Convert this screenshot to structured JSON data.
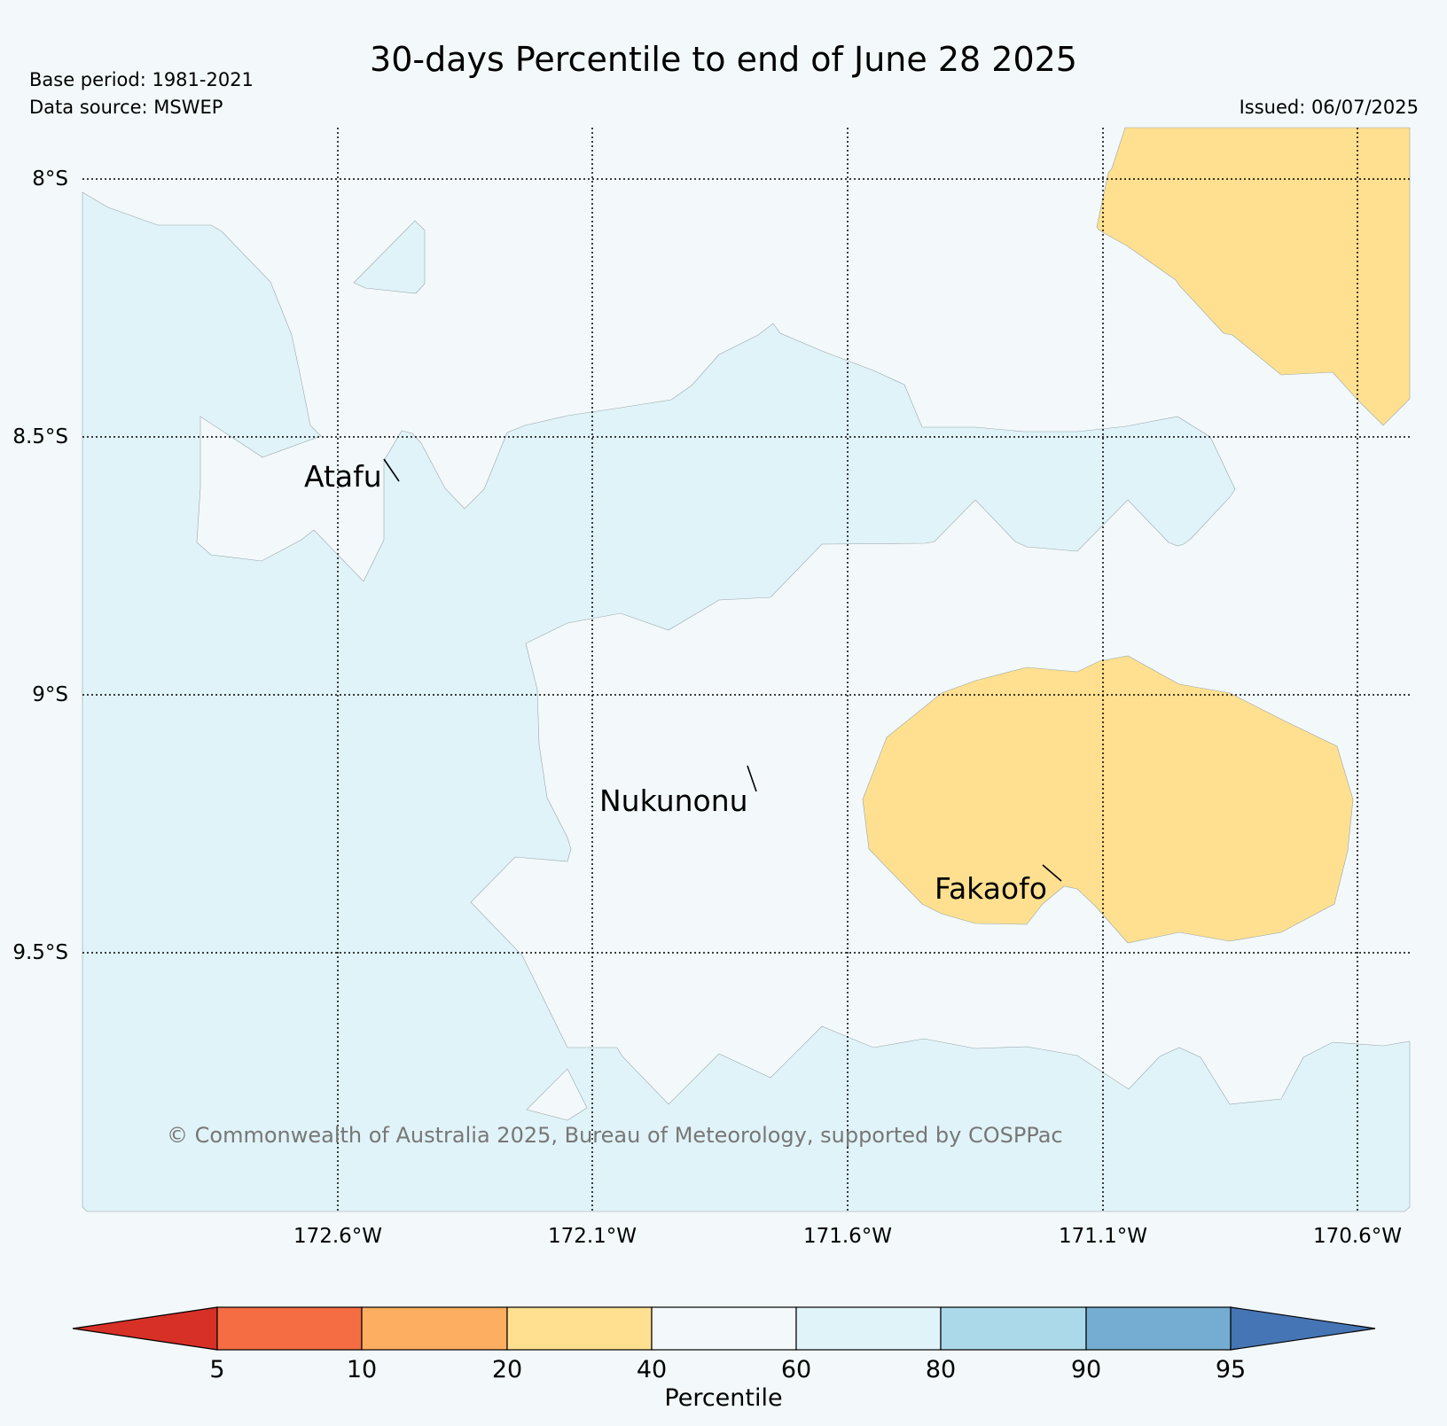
{
  "title": "30-days Percentile to end of June 28 2025",
  "base_period": "Base period: 1981-2021",
  "data_source": "Data source: MSWEP",
  "issued": "Issued: 06/07/2025",
  "copyright": "© Commonwealth of Australia 2025, Bureau of Meteorology, supported by COSPPac",
  "latitude_labels": [
    "8°S",
    "8.5°S",
    "9°S",
    "9.5°S"
  ],
  "longitude_labels": [
    "172.6°W",
    "172.1°W",
    "171.6°W",
    "171.1°W",
    "170.6°W"
  ],
  "places": {
    "atafu": "Atafu",
    "nukunonu": "Nukunonu",
    "fakaofo": "Fakaofo"
  },
  "colorbar": {
    "label": "Percentile",
    "ticks": [
      "5",
      "10",
      "20",
      "40",
      "60",
      "80",
      "90",
      "95"
    ],
    "colors": {
      "below_5": "#d73027",
      "5_10": "#f46d43",
      "10_20": "#fdae61",
      "20_40": "#fee090",
      "40_60": "#f3f9fb",
      "60_80": "#e0f3f8",
      "80_90": "#abd9e9",
      "90_95": "#74add1",
      "above_95": "#4575b4"
    }
  },
  "map_fill": {
    "very_much_above_fill": "#e0f3f8",
    "near_normal_fill": "#f3f9fb",
    "below_fill": "#fee090"
  }
}
